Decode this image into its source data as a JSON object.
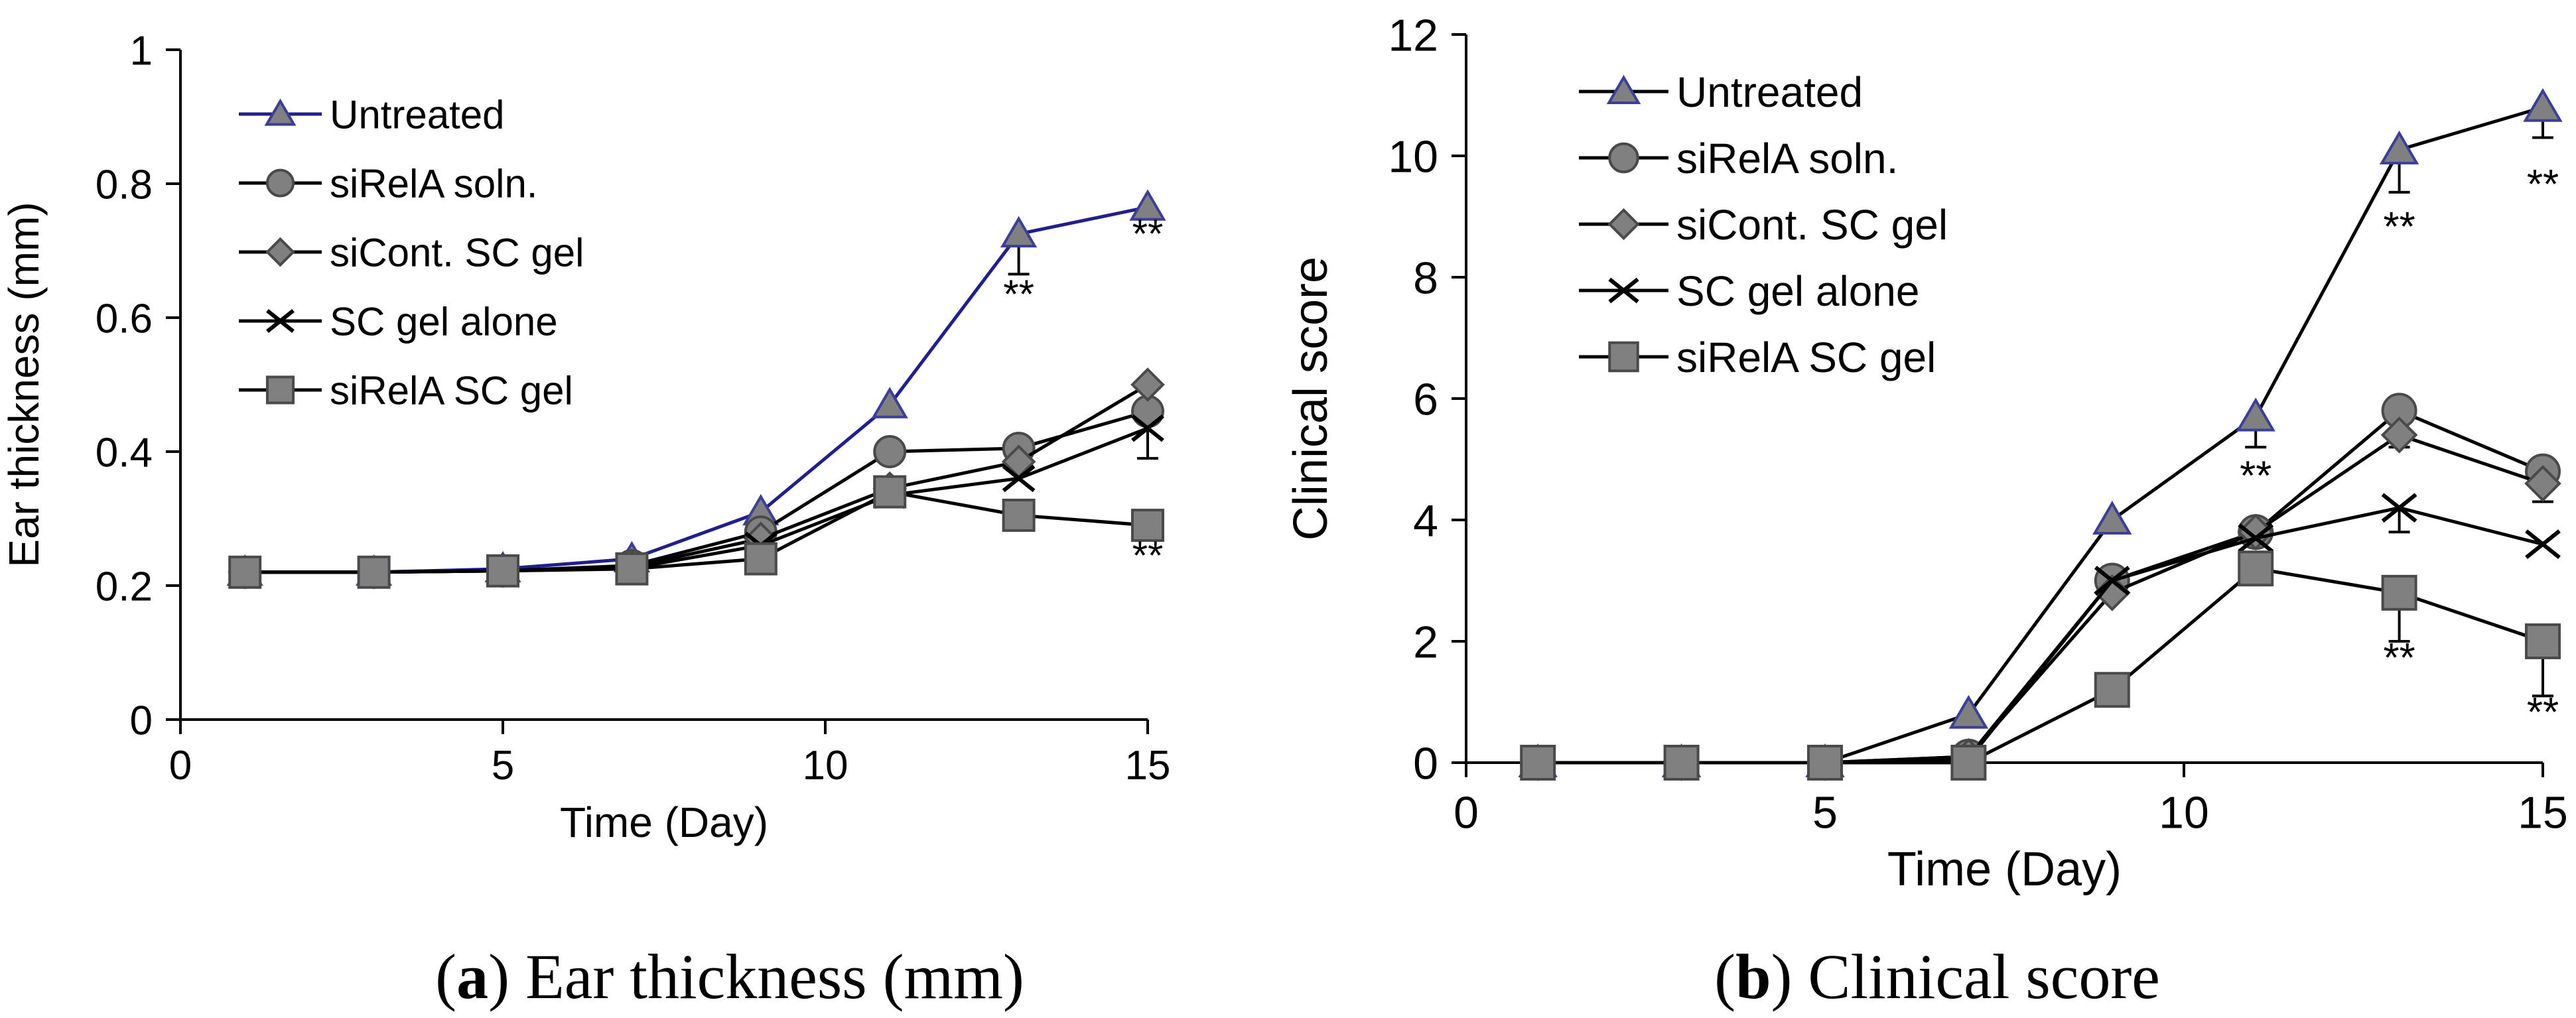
{
  "chart_data": [
    {
      "id": "a",
      "type": "line",
      "caption_letter": "a",
      "caption_text": " Ear thickness (mm)",
      "xlabel": "Time (Day)",
      "ylabel": "Ear thickness (mm)",
      "xlim": [
        0,
        15
      ],
      "ylim": [
        0,
        1
      ],
      "xticks": [
        0,
        5,
        10,
        15
      ],
      "yticks": [
        0,
        0.2,
        0.4,
        0.6,
        0.8,
        1
      ],
      "ytick_labels": [
        "0",
        "0.2",
        "0.4",
        "0.6",
        "0.8",
        "1"
      ],
      "legend_position": "top-left",
      "x": [
        1,
        3,
        5,
        7,
        9,
        11,
        13,
        15
      ],
      "series": [
        {
          "name": "Untreated",
          "marker": "triangle",
          "line_color": "#1f1f8f",
          "values": [
            0.22,
            0.22,
            0.225,
            0.24,
            0.31,
            0.47,
            0.725,
            0.765
          ],
          "errors": [
            0,
            0,
            0,
            0,
            0,
            0,
            0.06,
            0
          ]
        },
        {
          "name": "siRelA soln.",
          "marker": "circle",
          "line_color": "#000000",
          "values": [
            0.22,
            0.22,
            0.222,
            0.23,
            0.28,
            0.4,
            0.405,
            0.46
          ],
          "errors": [
            0,
            0,
            0,
            0,
            0,
            0,
            0,
            0
          ]
        },
        {
          "name": "siCont. SC gel",
          "marker": "diamond",
          "line_color": "#000000",
          "values": [
            0.22,
            0.22,
            0.222,
            0.228,
            0.27,
            0.345,
            0.385,
            0.5
          ],
          "errors": [
            0,
            0,
            0,
            0,
            0,
            0,
            0,
            0
          ]
        },
        {
          "name": "SC gel alone",
          "marker": "x",
          "line_color": "#000000",
          "values": [
            0.22,
            0.22,
            0.222,
            0.226,
            0.26,
            0.335,
            0.36,
            0.435
          ],
          "errors": [
            0,
            0,
            0,
            0,
            0,
            0,
            0,
            0.045
          ]
        },
        {
          "name": "siRelA SC gel",
          "marker": "square",
          "line_color": "#000000",
          "values": [
            0.22,
            0.22,
            0.222,
            0.225,
            0.24,
            0.34,
            0.305,
            0.29
          ],
          "errors": [
            0,
            0,
            0,
            0,
            0,
            0,
            0,
            0
          ]
        }
      ],
      "annotations": [
        {
          "text": "**",
          "x": 13,
          "y": 0.615
        },
        {
          "text": "**",
          "x": 15,
          "y": 0.705
        },
        {
          "text": "**",
          "x": 15,
          "y": 0.225
        }
      ]
    },
    {
      "id": "b",
      "type": "line",
      "caption_letter": "b",
      "caption_text": " Clinical score",
      "xlabel": "Time (Day)",
      "ylabel": "Clinical score",
      "xlim": [
        0,
        15
      ],
      "ylim": [
        0,
        12
      ],
      "xticks": [
        0,
        5,
        10,
        15
      ],
      "yticks": [
        0,
        2,
        4,
        6,
        8,
        10,
        12
      ],
      "ytick_labels": [
        "0",
        "2",
        "4",
        "6",
        "8",
        "10",
        "12"
      ],
      "legend_position": "top-left",
      "x": [
        1,
        3,
        5,
        7,
        9,
        11,
        13,
        15
      ],
      "series": [
        {
          "name": "Untreated",
          "marker": "triangle",
          "line_color": "#000000",
          "values": [
            0,
            0,
            0,
            0.8,
            4.0,
            5.7,
            10.1,
            10.8
          ],
          "errors": [
            0,
            0,
            0,
            0,
            0,
            0.5,
            0.7,
            0.5
          ]
        },
        {
          "name": "siRelA soln.",
          "marker": "circle",
          "line_color": "#000000",
          "values": [
            0,
            0,
            0,
            0.1,
            3.0,
            3.8,
            5.8,
            4.8
          ],
          "errors": [
            0,
            0,
            0,
            0,
            0.3,
            0,
            0.6,
            0.5
          ]
        },
        {
          "name": "siCont. SC gel",
          "marker": "diamond",
          "line_color": "#000000",
          "values": [
            0,
            0,
            0,
            0.1,
            2.8,
            3.8,
            5.4,
            4.6
          ],
          "errors": [
            0,
            0,
            0,
            0,
            0,
            0,
            0,
            0
          ]
        },
        {
          "name": "SC gel alone",
          "marker": "x",
          "line_color": "#000000",
          "values": [
            0,
            0,
            0,
            0.05,
            3.0,
            3.7,
            4.2,
            3.6
          ],
          "errors": [
            0,
            0,
            0,
            0,
            0,
            0,
            0.4,
            0
          ]
        },
        {
          "name": "siRelA SC gel",
          "marker": "square",
          "line_color": "#000000",
          "values": [
            0,
            0,
            0,
            0,
            1.2,
            3.2,
            2.8,
            2.0
          ],
          "errors": [
            0,
            0,
            0,
            0,
            0,
            0,
            0.8,
            0.9
          ]
        }
      ],
      "annotations": [
        {
          "text": "**",
          "x": 11,
          "y": 4.5
        },
        {
          "text": "**",
          "x": 13,
          "y": 8.6
        },
        {
          "text": "**",
          "x": 15,
          "y": 9.3
        },
        {
          "text": "**",
          "x": 13,
          "y": 1.5
        },
        {
          "text": "**",
          "x": 15,
          "y": 0.6
        }
      ]
    }
  ]
}
